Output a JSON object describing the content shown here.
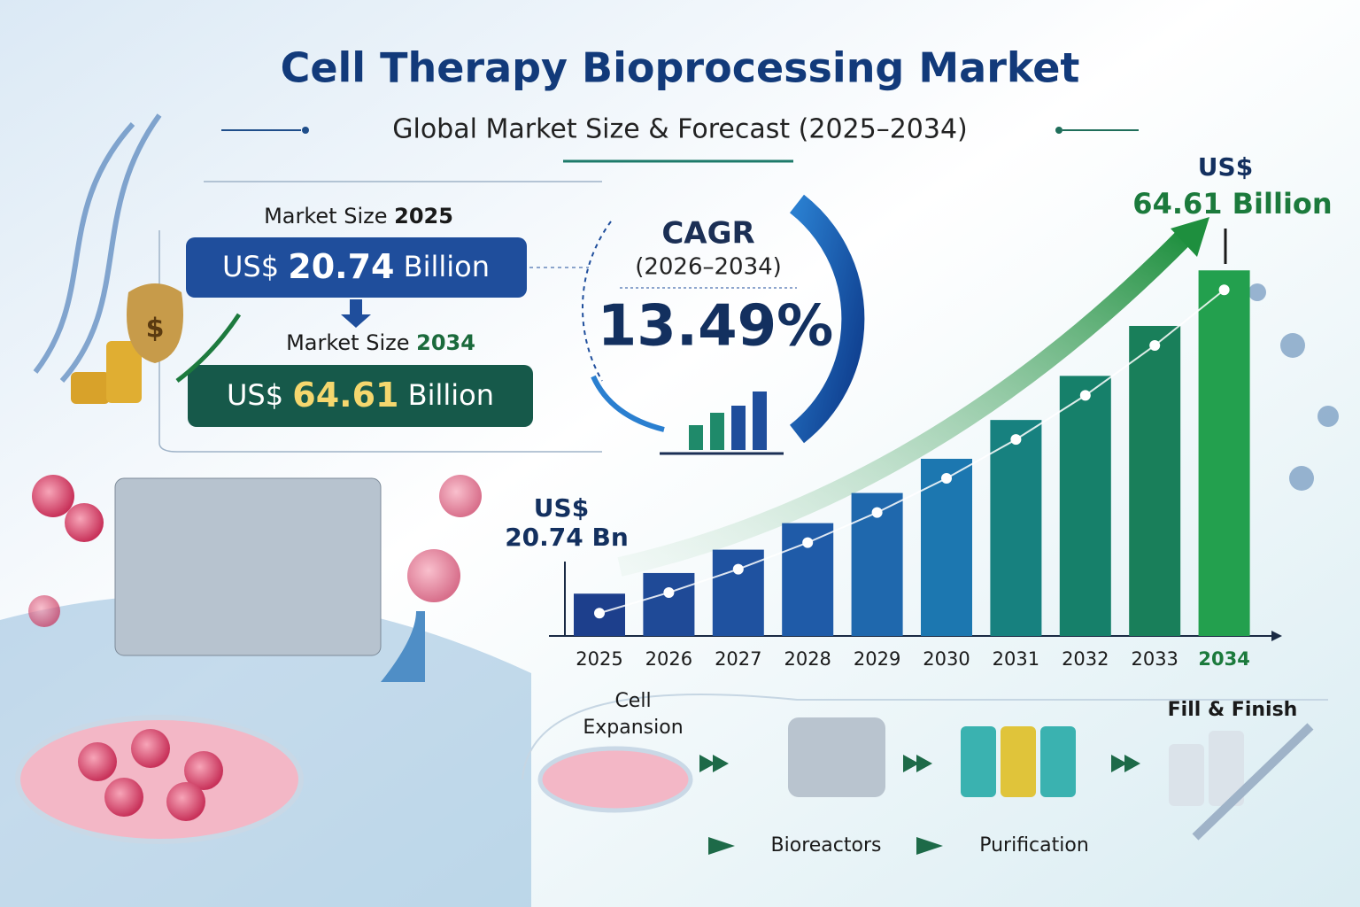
{
  "header": {
    "title": "Cell Therapy Bioprocessing Market",
    "subtitle": "Global Market Size & Forecast (2025–2034)"
  },
  "market_size": [
    {
      "label": "Market Size",
      "year": "2025",
      "currency": "US$",
      "amount": "20.74",
      "unit": "Billion"
    },
    {
      "label": "Market Size",
      "year": "2034",
      "currency": "US$",
      "amount": "64.61",
      "unit": "Billion"
    }
  ],
  "cagr": {
    "label": "CAGR",
    "period": "(2026–2034)",
    "value": "13.49%"
  },
  "process": [
    "Cell Expansion",
    "Bioreactors",
    "Purification",
    "Fill & Finish"
  ],
  "chart_data": {
    "type": "bar",
    "categories": [
      "2025",
      "2026",
      "2027",
      "2028",
      "2029",
      "2030",
      "2031",
      "2032",
      "2033",
      "2034"
    ],
    "values": [
      20.74,
      23.54,
      26.71,
      30.31,
      34.4,
      39.04,
      44.31,
      50.29,
      57.07,
      64.61
    ],
    "value_labels": [
      "20.74 Bn",
      null,
      null,
      null,
      null,
      null,
      null,
      null,
      null,
      "64.61 Billion"
    ],
    "value_label_prefix": "US$",
    "colors": [
      "#1d3f8c",
      "#1f4a97",
      "#1f52a0",
      "#1f5ba8",
      "#1f68ad",
      "#1c77b0",
      "#17817f",
      "#16806a",
      "#197f5a",
      "#23a04e"
    ],
    "ylim": [
      15,
      65
    ]
  }
}
